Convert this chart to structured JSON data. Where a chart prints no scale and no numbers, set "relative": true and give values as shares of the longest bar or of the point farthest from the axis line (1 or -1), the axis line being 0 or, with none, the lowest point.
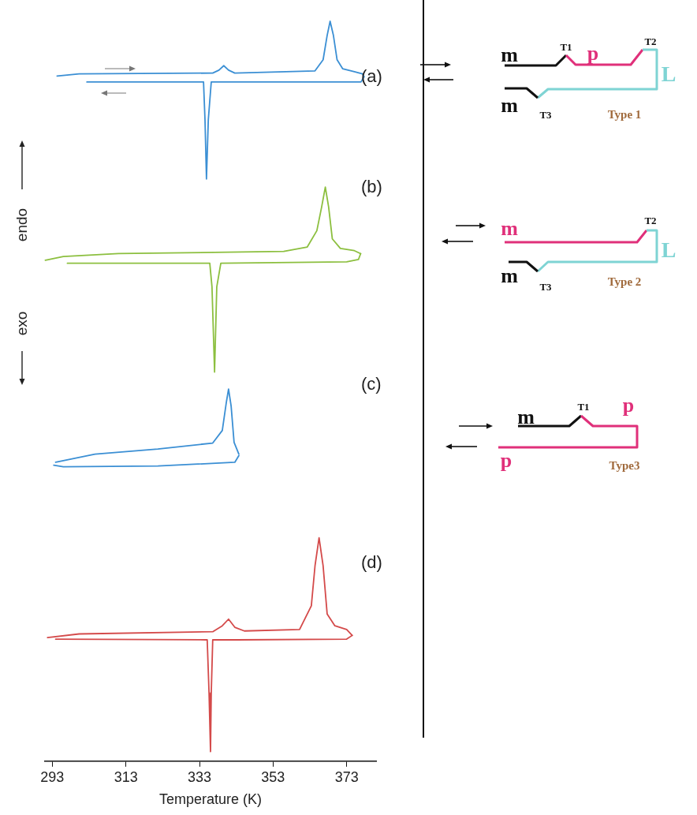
{
  "chart_data": [
    {
      "type": "line",
      "annotations": [
        "(a)",
        "(b)",
        "(c)",
        "(d)",
        "endo",
        "exo"
      ],
      "xlabel": "Temperature (K)",
      "xlim": [
        291,
        381
      ],
      "xticks": [
        293,
        313,
        333,
        353,
        373
      ],
      "tick_labels": "x",
      "relative": true,
      "marker": "none",
      "series": [
        {
          "color": "#3b8fd4",
          "x": [
            294.3,
            300.3,
            336.6,
            338.3,
            339.6,
            340.9,
            342.6,
            364.4,
            366.6,
            367.7,
            368.5,
            369.4,
            370.4,
            371.9,
            375.1,
            377.3,
            377.7
          ],
          "values": [
            0.926,
            0.929,
            0.93,
            0.934,
            0.94,
            0.934,
            0.93,
            0.933,
            0.948,
            0.981,
            1,
            0.981,
            0.948,
            0.936,
            0.932,
            0.929,
            0.925
          ]
        },
        {
          "color": "#3b8fd4",
          "x": [
            377.7,
            376.9,
            343.1,
            336.2,
            335.4,
            334.9,
            334.5,
            334.1,
            302.4
          ],
          "values": [
            0.925,
            0.918,
            0.918,
            0.918,
            0.867,
            0.787,
            0.867,
            0.918,
            0.918
          ]
        },
        {
          "color": "#8cbf3f",
          "x": [
            291.1,
            296.0,
            311.0,
            355.9,
            362.3,
            364.9,
            366.2,
            367.2,
            368.1,
            369.1,
            371.3,
            375.1,
            376.8
          ],
          "values": [
            0.677,
            0.682,
            0.686,
            0.689,
            0.695,
            0.717,
            0.749,
            0.776,
            0.749,
            0.706,
            0.693,
            0.69,
            0.686
          ]
        },
        {
          "color": "#8cbf3f",
          "x": [
            376.8,
            376.2,
            373.0,
            338.8,
            337.7,
            337.1,
            336.4,
            335.8,
            297.1
          ],
          "values": [
            0.686,
            0.678,
            0.675,
            0.673,
            0.641,
            0.526,
            0.641,
            0.673,
            0.673
          ]
        },
        {
          "color": "#3b8fd4",
          "x": [
            293.9,
            304.6,
            321.7,
            336.6,
            339.2,
            340.3,
            340.9,
            341.6,
            342.4,
            343.7
          ],
          "values": [
            0.404,
            0.415,
            0.422,
            0.43,
            0.447,
            0.485,
            0.503,
            0.48,
            0.431,
            0.415
          ]
        },
        {
          "color": "#3b8fd4",
          "x": [
            343.7,
            342.6,
            321.7,
            296.0,
            293.4
          ],
          "values": [
            0.413,
            0.404,
            0.399,
            0.398,
            0.4
          ]
        },
        {
          "color": "#d44a4a",
          "x": [
            291.7,
            300.3,
            336.6,
            339.2,
            340.9,
            342.6,
            345.2,
            360.2,
            363.4,
            364.4,
            365.5,
            366.6,
            367.7,
            369.8,
            373.0,
            374.5
          ],
          "values": [
            0.167,
            0.172,
            0.175,
            0.183,
            0.192,
            0.181,
            0.176,
            0.178,
            0.21,
            0.264,
            0.302,
            0.264,
            0.199,
            0.183,
            0.178,
            0.17
          ]
        },
        {
          "color": "#d44a4a",
          "x": [
            374.5,
            373.0,
            343.1,
            336.6,
            336.2,
            336.0,
            335.6,
            335.1,
            293.9
          ],
          "values": [
            0.17,
            0.165,
            0.164,
            0.164,
            0.092,
            0.013,
            0.092,
            0.164,
            0.165
          ]
        }
      ]
    },
    {
      "type": "other",
      "annotations": [
        "m",
        "T1",
        "p",
        "T2",
        "L",
        "m",
        "T3",
        "Type 1"
      ]
    },
    {
      "type": "other",
      "annotations": [
        "m",
        "T2",
        "L",
        "m",
        "T3",
        "Type 2"
      ]
    },
    {
      "type": "other",
      "annotations": [
        "m",
        "T1",
        "p",
        "p",
        "Type3"
      ]
    }
  ]
}
